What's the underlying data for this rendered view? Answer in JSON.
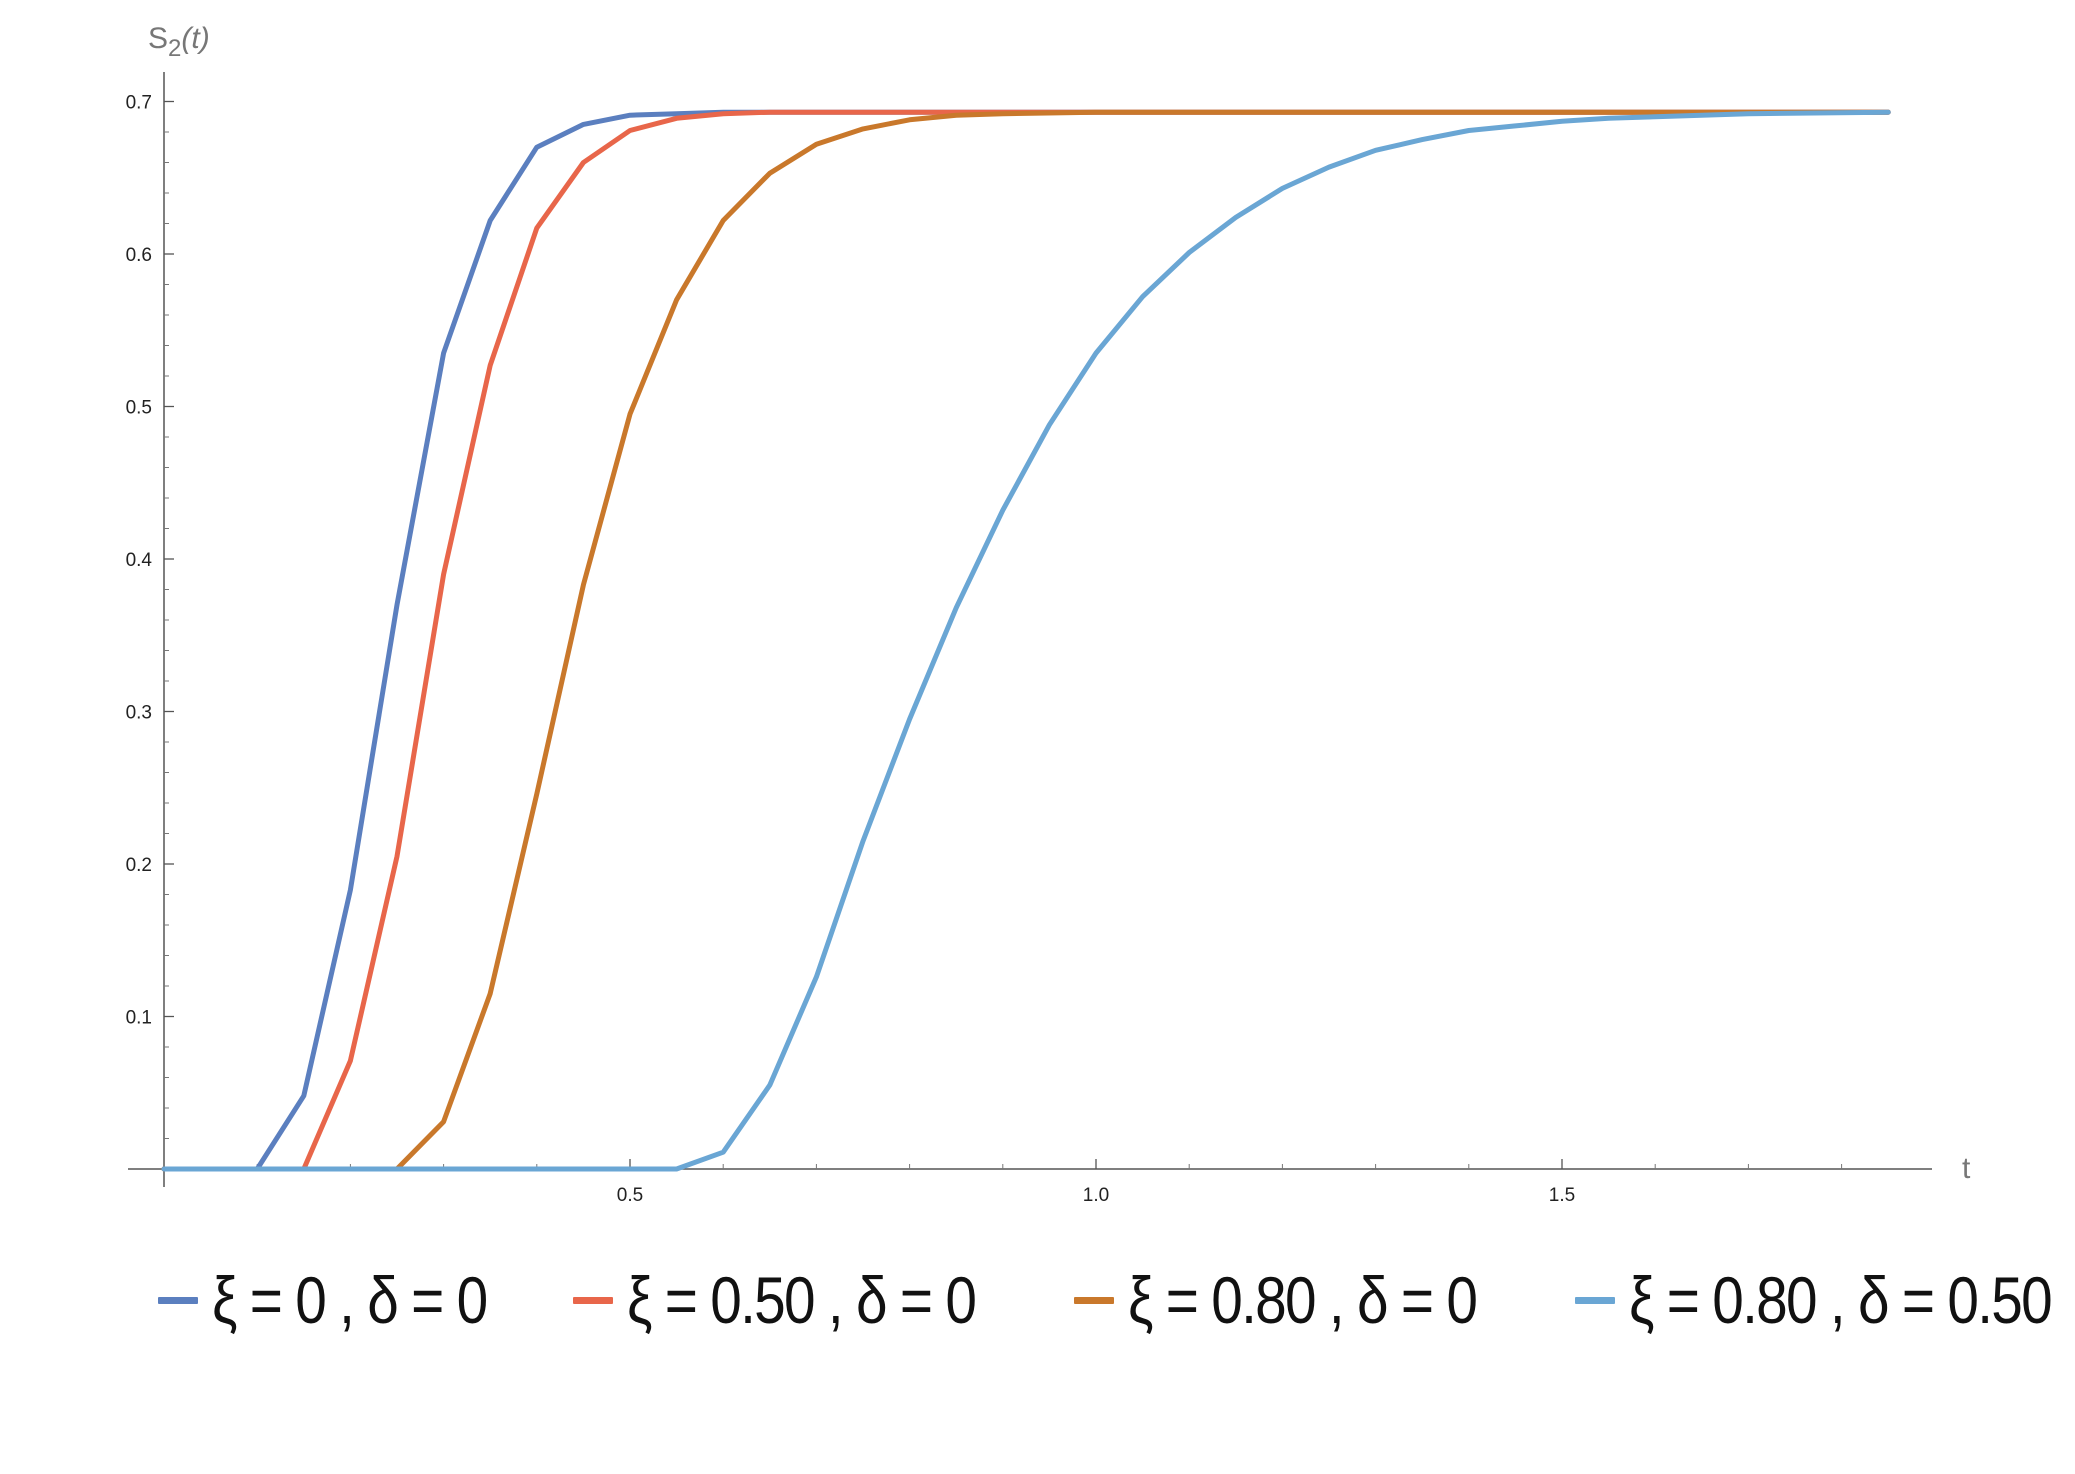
{
  "chart_data": {
    "type": "line",
    "ylabel_base": "S",
    "ylabel_sub": "2",
    "ylabel_arg": "(t)",
    "xlabel": "t",
    "xlim": [
      0,
      1.86
    ],
    "ylim": [
      0,
      0.7
    ],
    "xticks": [
      0.5,
      1.0,
      1.5
    ],
    "xtick_labels": [
      "0.5",
      "1.0",
      "1.5"
    ],
    "yticks": [
      0.1,
      0.2,
      0.3,
      0.4,
      0.5,
      0.6,
      0.7
    ],
    "ytick_labels": [
      "0.1",
      "0.2",
      "0.3",
      "0.4",
      "0.5",
      "0.6",
      "0.7"
    ],
    "grid": false,
    "legend_position": "bottom",
    "series": [
      {
        "name": "ξ = 0 , δ = 0",
        "color": "#5b7fbf",
        "x": [
          0,
          0.1,
          0.15,
          0.2,
          0.25,
          0.3,
          0.35,
          0.4,
          0.45,
          0.5,
          0.55,
          0.6,
          0.7,
          0.8,
          1.0,
          1.5,
          1.85
        ],
        "y": [
          0,
          0,
          0.048,
          0.183,
          0.37,
          0.535,
          0.622,
          0.67,
          0.685,
          0.691,
          0.692,
          0.693,
          0.693,
          0.693,
          0.693,
          0.693,
          0.693
        ]
      },
      {
        "name": "ξ = 0.50 , δ = 0",
        "color": "#e8664a",
        "x": [
          0,
          0.15,
          0.2,
          0.25,
          0.3,
          0.35,
          0.4,
          0.45,
          0.5,
          0.55,
          0.6,
          0.65,
          0.7,
          0.8,
          1.0,
          1.5,
          1.85
        ],
        "y": [
          0,
          0,
          0.071,
          0.205,
          0.39,
          0.527,
          0.617,
          0.66,
          0.681,
          0.689,
          0.692,
          0.693,
          0.693,
          0.693,
          0.693,
          0.693,
          0.693
        ]
      },
      {
        "name": "ξ = 0.80 , δ = 0",
        "color": "#c9782b",
        "x": [
          0,
          0.25,
          0.3,
          0.35,
          0.4,
          0.45,
          0.5,
          0.55,
          0.6,
          0.65,
          0.7,
          0.75,
          0.8,
          0.85,
          0.9,
          1.0,
          1.5,
          1.85
        ],
        "y": [
          0,
          0,
          0.031,
          0.115,
          0.246,
          0.383,
          0.495,
          0.57,
          0.622,
          0.653,
          0.672,
          0.682,
          0.688,
          0.691,
          0.692,
          0.693,
          0.693,
          0.693
        ]
      },
      {
        "name": "ξ = 0.80 , δ = 0.50",
        "color": "#6aa6d4",
        "x": [
          0,
          0.55,
          0.6,
          0.65,
          0.7,
          0.75,
          0.8,
          0.85,
          0.9,
          0.95,
          1.0,
          1.05,
          1.1,
          1.15,
          1.2,
          1.25,
          1.3,
          1.35,
          1.4,
          1.45,
          1.5,
          1.55,
          1.6,
          1.7,
          1.85
        ],
        "y": [
          0,
          0,
          0.011,
          0.055,
          0.126,
          0.215,
          0.295,
          0.368,
          0.432,
          0.488,
          0.535,
          0.572,
          0.601,
          0.624,
          0.643,
          0.657,
          0.668,
          0.675,
          0.681,
          0.684,
          0.687,
          0.689,
          0.69,
          0.692,
          0.693
        ]
      }
    ]
  }
}
